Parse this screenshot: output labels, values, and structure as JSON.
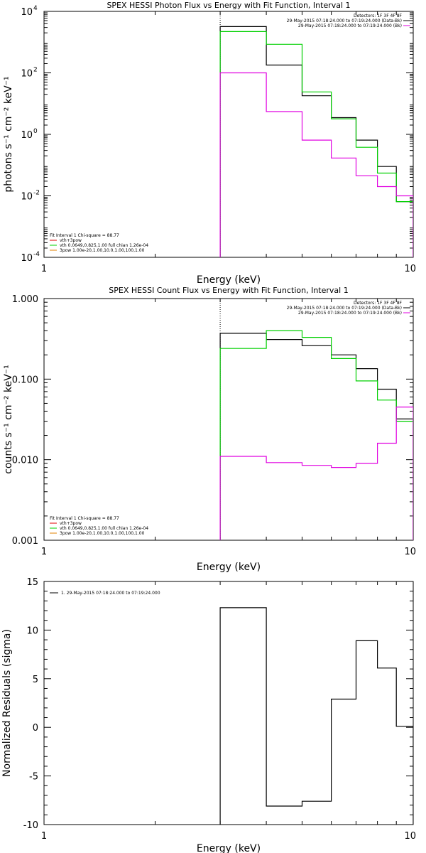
{
  "colors": {
    "background": "#ffffff",
    "axis": "#000000",
    "data_black": "#000000",
    "data_green": "#00d000",
    "data_magenta": "#e000e0",
    "data_orange": "#e08000",
    "data_red": "#e00000",
    "guide_line": "#000000"
  },
  "chart_data": [
    {
      "type": "line",
      "title": "SPEX HESSI Photon Flux vs Energy with Fit Function, Interval 1",
      "xlabel": "Energy (keV)",
      "ylabel": "photons s⁻¹ cm⁻² keV⁻¹",
      "xscale": "log",
      "yscale": "log",
      "xlim": [
        1,
        10
      ],
      "ylim": [
        0.0001,
        10000
      ],
      "x_ticks": [
        {
          "value": 1,
          "label": "1"
        },
        {
          "value": 10,
          "label": "10"
        }
      ],
      "y_ticks": [
        {
          "value": 0.0001,
          "base": "10",
          "exp": "-4"
        },
        {
          "value": 0.01,
          "base": "10",
          "exp": "-2"
        },
        {
          "value": 1,
          "base": "10",
          "exp": "0"
        },
        {
          "value": 100,
          "base": "10",
          "exp": "2"
        },
        {
          "value": 10000,
          "base": "10",
          "exp": "4"
        }
      ],
      "edges": [
        3,
        4,
        5,
        6,
        7,
        8,
        9,
        10
      ],
      "vline_x": 3,
      "series": [
        {
          "name": "",
          "color": "#000000",
          "step": true,
          "values": [
            3200,
            180,
            18,
            3.5,
            0.65,
            0.09,
            0.0065
          ]
        },
        {
          "name": "",
          "color": "#00d000",
          "step": true,
          "values": [
            2200,
            850,
            24,
            3.2,
            0.38,
            0.055,
            0.0065
          ]
        },
        {
          "name": "",
          "color": "#e000e0",
          "step": true,
          "values": [
            100,
            5.5,
            0.65,
            0.17,
            0.045,
            0.02,
            0.01
          ]
        }
      ],
      "legend_top_right": [
        {
          "text": "Detectors: 1F 3F 4F 8F",
          "color": "",
          "sample": false
        },
        {
          "text": "29-May-2015 07:18:24.000 to 07:19:24.000 (Data-Bk)",
          "color": "#000000",
          "sample": true
        },
        {
          "text": "29-May-2015 07:18:24.000 to 07:19:24.000 (Bk)",
          "color": "#e000e0",
          "sample": true
        }
      ],
      "legend_bottom_left": [
        {
          "text": "Fit Interval 1    Chi-square = 88.77",
          "color": "",
          "sample": false
        },
        {
          "text": "vth+3pow",
          "color": "#e00000",
          "sample": true
        },
        {
          "text": "vth 0.0649,0.825,1.00   full chian 1.26e-04",
          "color": "#00d000",
          "sample": true
        },
        {
          "text": "3pow 1.00e-20,1.00,10.0,1.00,100,1.00",
          "color": "#e08000",
          "sample": true
        }
      ]
    },
    {
      "type": "line",
      "title": "SPEX HESSI Count Flux vs Energy with Fit Function, Interval 1",
      "xlabel": "Energy (keV)",
      "ylabel": "counts s⁻¹ cm⁻² keV⁻¹",
      "xscale": "log",
      "yscale": "log",
      "xlim": [
        1,
        10
      ],
      "ylim": [
        0.001,
        1
      ],
      "x_ticks": [
        {
          "value": 1,
          "label": "1"
        },
        {
          "value": 10,
          "label": "10"
        }
      ],
      "y_ticks": [
        {
          "value": 0.001,
          "label": "0.001"
        },
        {
          "value": 0.01,
          "label": "0.010"
        },
        {
          "value": 0.1,
          "label": "0.100"
        },
        {
          "value": 1,
          "label": "1.000"
        }
      ],
      "edges": [
        3,
        4,
        5,
        6,
        7,
        8,
        9,
        10
      ],
      "vline_x": 3,
      "series": [
        {
          "name": "",
          "color": "#000000",
          "step": true,
          "values": [
            0.37,
            0.31,
            0.26,
            0.2,
            0.135,
            0.075,
            0.032
          ]
        },
        {
          "name": "",
          "color": "#00d000",
          "step": true,
          "values": [
            0.24,
            0.4,
            0.33,
            0.18,
            0.095,
            0.055,
            0.03
          ]
        },
        {
          "name": "",
          "color": "#e000e0",
          "step": true,
          "values": [
            0.011,
            0.0092,
            0.0085,
            0.008,
            0.009,
            0.016,
            0.045
          ]
        }
      ],
      "legend_top_right": [
        {
          "text": "Detectors: 1F 3F 4F 8F",
          "color": "",
          "sample": false
        },
        {
          "text": "29-May-2015 07:18:24.000 to 07:19:24.000 (Data-Bk)",
          "color": "#000000",
          "sample": true
        },
        {
          "text": "29-May-2015 07:18:24.000 to 07:19:24.000 (Bk)",
          "color": "#e000e0",
          "sample": true
        }
      ],
      "legend_bottom_left": [
        {
          "text": "Fit Interval 1    Chi-square = 88.77",
          "color": "",
          "sample": false
        },
        {
          "text": "vth+3pow",
          "color": "#e00000",
          "sample": true
        },
        {
          "text": "vth 0.0649,0.825,1.00   full chian 1.26e-04",
          "color": "#00d000",
          "sample": true
        },
        {
          "text": "3pow 1.00e-20,1.00,10.0,1.00,100,1.00",
          "color": "#e08000",
          "sample": true
        }
      ]
    },
    {
      "type": "line",
      "title": "",
      "xlabel": "Energy (keV)",
      "ylabel": "Normalized Residuals (sigma)",
      "xscale": "log",
      "yscale": "linear",
      "xlim": [
        1,
        10
      ],
      "ylim": [
        -10,
        15
      ],
      "x_ticks": [
        {
          "value": 1,
          "label": "1"
        },
        {
          "value": 10,
          "label": "10"
        }
      ],
      "y_ticks": [
        {
          "value": -10,
          "label": "-10"
        },
        {
          "value": -5,
          "label": "-5"
        },
        {
          "value": 0,
          "label": "0"
        },
        {
          "value": 5,
          "label": "5"
        },
        {
          "value": 10,
          "label": "10"
        },
        {
          "value": 15,
          "label": "15"
        }
      ],
      "edges": [
        3,
        4,
        5,
        6,
        7,
        8,
        9,
        10
      ],
      "vline_x": null,
      "series": [
        {
          "name": "",
          "color": "#000000",
          "step": true,
          "values": [
            12.3,
            -8.1,
            -7.6,
            2.9,
            8.9,
            6.1,
            0.1
          ]
        }
      ],
      "legend_top_right": [],
      "legend_bottom_left": [
        {
          "text": "1. 29-May-2015 07:18:24.000 to 07:19:24.000",
          "color": "#000000",
          "sample": true
        }
      ]
    }
  ]
}
